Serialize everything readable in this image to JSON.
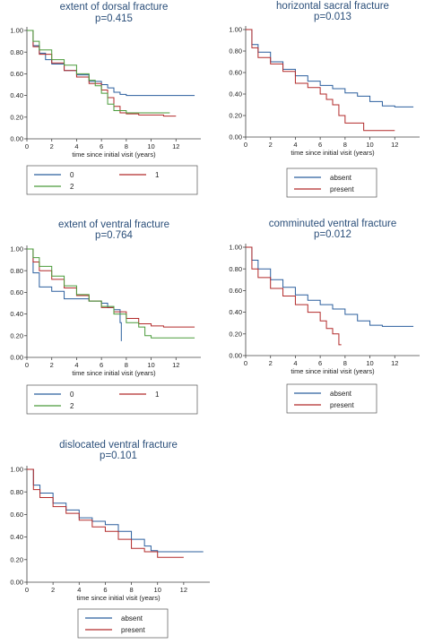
{
  "chart_data": [
    {
      "type": "line",
      "title": "extent of dorsal fracture",
      "subtitle": "p=0.415",
      "xlabel": "time since initial visit (years)",
      "ylabel": "",
      "xlim": [
        0,
        14
      ],
      "ylim": [
        0,
        1
      ],
      "xticks": [
        "0",
        "2",
        "4",
        "6",
        "8",
        "10",
        "12"
      ],
      "yticks": [
        "0.00",
        "0.20",
        "0.40",
        "0.60",
        "0.80",
        "1.00"
      ],
      "legend": {
        "placement": "bottom",
        "columns": 2
      },
      "series": [
        {
          "name": "0",
          "color": "#2b5f9e",
          "x": [
            0,
            0.5,
            1,
            1.5,
            2,
            3,
            4,
            5,
            6,
            6.5,
            7,
            7.5,
            8,
            13.5
          ],
          "y": [
            1,
            0.86,
            0.79,
            0.73,
            0.69,
            0.63,
            0.59,
            0.53,
            0.5,
            0.47,
            0.43,
            0.41,
            0.4,
            0.4
          ]
        },
        {
          "name": "1",
          "color": "#b22a2a",
          "x": [
            0,
            0.5,
            1,
            2,
            3,
            4,
            5,
            6,
            6.5,
            7,
            7.5,
            8,
            9,
            10,
            11,
            12
          ],
          "y": [
            1,
            0.85,
            0.78,
            0.7,
            0.63,
            0.57,
            0.51,
            0.45,
            0.38,
            0.3,
            0.24,
            0.23,
            0.22,
            0.22,
            0.21,
            0.21
          ]
        },
        {
          "name": "2",
          "color": "#4a9b3a",
          "x": [
            0,
            0.5,
            1,
            2,
            3,
            4,
            5,
            5.5,
            6,
            6.5,
            7,
            8,
            9,
            10,
            11.5
          ],
          "y": [
            1,
            0.9,
            0.82,
            0.73,
            0.68,
            0.6,
            0.54,
            0.49,
            0.42,
            0.32,
            0.26,
            0.24,
            0.24,
            0.24,
            0.24
          ]
        }
      ]
    },
    {
      "type": "line",
      "title": "horizontal sacral fracture",
      "subtitle": "p=0.013",
      "xlabel": "time since initial visit (years)",
      "ylabel": "",
      "xlim": [
        0,
        14
      ],
      "ylim": [
        0,
        1
      ],
      "xticks": [
        "0",
        "2",
        "4",
        "6",
        "8",
        "10",
        "12"
      ],
      "yticks": [
        "0.00",
        "0.20",
        "0.40",
        "0.60",
        "0.80",
        "1.00"
      ],
      "legend": {
        "placement": "bottom",
        "columns": 1
      },
      "series": [
        {
          "name": "absent",
          "color": "#2b5f9e",
          "x": [
            0,
            0.5,
            1,
            2,
            3,
            4,
            5,
            6,
            7,
            8,
            9,
            10,
            11,
            12,
            13.5
          ],
          "y": [
            1,
            0.86,
            0.79,
            0.7,
            0.63,
            0.57,
            0.52,
            0.48,
            0.45,
            0.41,
            0.38,
            0.33,
            0.29,
            0.28,
            0.28
          ]
        },
        {
          "name": "present",
          "color": "#b22a2a",
          "x": [
            0,
            0.5,
            1,
            2,
            3,
            4,
            5,
            6,
            6.5,
            7,
            7.5,
            8,
            9,
            9.5,
            10.5,
            12
          ],
          "y": [
            1,
            0.83,
            0.74,
            0.68,
            0.61,
            0.5,
            0.46,
            0.4,
            0.35,
            0.3,
            0.2,
            0.13,
            0.13,
            0.06,
            0.06,
            0.06
          ]
        }
      ]
    },
    {
      "type": "line",
      "title": "extent of ventral fracture",
      "subtitle": "p=0.764",
      "xlabel": "time since initial visit (years)",
      "ylabel": "",
      "xlim": [
        0,
        14
      ],
      "ylim": [
        0,
        1
      ],
      "xticks": [
        "0",
        "2",
        "4",
        "6",
        "8",
        "10",
        "12"
      ],
      "yticks": [
        "0.00",
        "0.20",
        "0.40",
        "0.60",
        "0.80",
        "1.00"
      ],
      "legend": {
        "placement": "bottom",
        "columns": 2
      },
      "series": [
        {
          "name": "0",
          "color": "#2b5f9e",
          "x": [
            0,
            0.5,
            1,
            2,
            3,
            4,
            5,
            6,
            6.5,
            7,
            7.5,
            7.6
          ],
          "y": [
            1,
            0.78,
            0.65,
            0.61,
            0.54,
            0.54,
            0.52,
            0.5,
            0.46,
            0.44,
            0.32,
            0.15
          ]
        },
        {
          "name": "1",
          "color": "#b22a2a",
          "x": [
            0,
            0.5,
            1,
            2,
            3,
            4,
            5,
            6,
            7,
            8,
            9,
            10,
            11,
            12,
            13.5
          ],
          "y": [
            1,
            0.88,
            0.8,
            0.72,
            0.64,
            0.57,
            0.52,
            0.46,
            0.42,
            0.36,
            0.31,
            0.29,
            0.28,
            0.28,
            0.28
          ]
        },
        {
          "name": "2",
          "color": "#4a9b3a",
          "x": [
            0,
            0.5,
            1,
            2,
            3,
            4,
            5,
            6,
            7,
            8,
            9,
            9.5,
            10,
            11,
            13.5
          ],
          "y": [
            1,
            0.92,
            0.84,
            0.75,
            0.66,
            0.58,
            0.52,
            0.47,
            0.4,
            0.32,
            0.28,
            0.2,
            0.18,
            0.18,
            0.18
          ]
        }
      ]
    },
    {
      "type": "line",
      "title": "comminuted ventral fracture",
      "subtitle": "p=0.012",
      "xlabel": "time since initial visit (years)",
      "ylabel": "",
      "xlim": [
        0,
        14
      ],
      "ylim": [
        0,
        1
      ],
      "xticks": [
        "0",
        "2",
        "4",
        "6",
        "8",
        "10",
        "12"
      ],
      "yticks": [
        "0.00",
        "0.20",
        "0.40",
        "0.60",
        "0.80",
        "1.00"
      ],
      "legend": {
        "placement": "bottom",
        "columns": 1
      },
      "series": [
        {
          "name": "absent",
          "color": "#2b5f9e",
          "x": [
            0,
            0.5,
            1,
            2,
            3,
            4,
            5,
            6,
            7,
            8,
            9,
            10,
            11,
            12,
            13.5
          ],
          "y": [
            1,
            0.88,
            0.8,
            0.7,
            0.63,
            0.56,
            0.51,
            0.47,
            0.43,
            0.38,
            0.32,
            0.28,
            0.27,
            0.27,
            0.27
          ]
        },
        {
          "name": "present",
          "color": "#b22a2a",
          "x": [
            0,
            0.5,
            1,
            2,
            3,
            4,
            5,
            6,
            6.5,
            7,
            7.5,
            7.7
          ],
          "y": [
            1,
            0.8,
            0.72,
            0.62,
            0.55,
            0.47,
            0.4,
            0.32,
            0.25,
            0.2,
            0.1,
            0.1
          ]
        }
      ]
    },
    {
      "type": "line",
      "title": "dislocated ventral fracture",
      "subtitle": "p=0.101",
      "xlabel": "time since initial visit (years)",
      "ylabel": "",
      "xlim": [
        0,
        14
      ],
      "ylim": [
        0,
        1
      ],
      "xticks": [
        "0",
        "2",
        "4",
        "6",
        "8",
        "10",
        "12"
      ],
      "yticks": [
        "0.00",
        "0.20",
        "0.40",
        "0.60",
        "0.80",
        "1.00"
      ],
      "legend": {
        "placement": "bottom",
        "columns": 1
      },
      "series": [
        {
          "name": "absent",
          "color": "#2b5f9e",
          "x": [
            0,
            0.5,
            1,
            2,
            3,
            4,
            5,
            6,
            7,
            8,
            9,
            9.5,
            10,
            12,
            13.5
          ],
          "y": [
            1,
            0.86,
            0.79,
            0.7,
            0.64,
            0.57,
            0.54,
            0.51,
            0.45,
            0.38,
            0.32,
            0.28,
            0.27,
            0.27,
            0.27
          ]
        },
        {
          "name": "present",
          "color": "#b22a2a",
          "x": [
            0,
            0.5,
            1,
            2,
            3,
            4,
            5,
            6,
            7,
            8,
            9,
            10,
            11,
            12
          ],
          "y": [
            1,
            0.82,
            0.75,
            0.67,
            0.61,
            0.55,
            0.49,
            0.45,
            0.38,
            0.3,
            0.27,
            0.22,
            0.22,
            0.22
          ]
        }
      ]
    }
  ]
}
